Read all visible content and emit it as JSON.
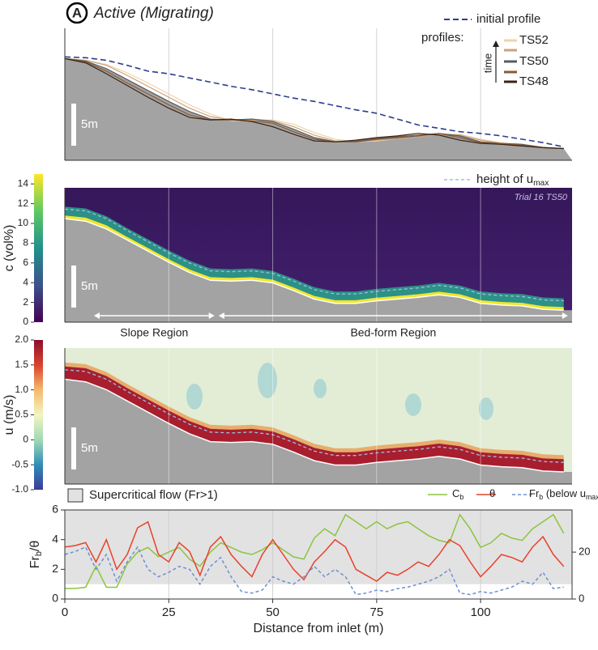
{
  "chart_data": [
    {
      "type": "line",
      "panel_letter": "A",
      "title": "Active (Migrating)",
      "legend_heading": "profiles:",
      "time_label": "time",
      "scale_label": "5m",
      "xlim": [
        0,
        122
      ],
      "ylim": [
        0,
        15.7
      ],
      "x": [
        0,
        5,
        10,
        15,
        20,
        25,
        30,
        35,
        40,
        45,
        50,
        55,
        60,
        65,
        70,
        75,
        80,
        85,
        90,
        95,
        100,
        105,
        110,
        115,
        120
      ],
      "series": [
        {
          "name": "initial profile",
          "color": "#2b3f8c",
          "dash": true,
          "values": [
            12.3,
            12.2,
            11.9,
            11.3,
            10.6,
            10.3,
            9.8,
            9.3,
            8.8,
            8.4,
            7.9,
            7.4,
            7.0,
            6.5,
            6.0,
            5.6,
            4.9,
            4.2,
            3.8,
            3.4,
            3.2,
            2.9,
            2.5,
            2.1,
            1.6
          ]
        },
        {
          "name": "TS52",
          "color": "#f1d3a8",
          "values": [
            12.1,
            11.9,
            11.4,
            10.4,
            9.2,
            7.9,
            6.6,
            5.5,
            4.7,
            4.8,
            4.8,
            4.3,
            3.3,
            2.5,
            2.2,
            2.3,
            2.6,
            2.8,
            3.1,
            3.1,
            2.5,
            2.1,
            1.9,
            1.6,
            1.4
          ]
        },
        {
          "name": null,
          "color": "#c9a27a",
          "values": [
            12.1,
            11.9,
            11.3,
            10.1,
            8.8,
            7.5,
            6.2,
            5.2,
            4.8,
            4.9,
            4.7,
            4.0,
            3.0,
            2.3,
            2.2,
            2.4,
            2.6,
            2.8,
            3.1,
            3.0,
            2.4,
            2.0,
            1.9,
            1.5,
            1.4
          ]
        },
        {
          "name": "TS50",
          "color": "#555a60",
          "values": [
            12.1,
            11.8,
            10.9,
            9.6,
            8.3,
            7.0,
            5.8,
            4.9,
            4.8,
            4.9,
            4.6,
            3.7,
            2.7,
            2.2,
            2.2,
            2.5,
            2.7,
            2.9,
            3.2,
            2.9,
            2.2,
            2.0,
            1.9,
            1.5,
            1.4
          ]
        },
        {
          "name": null,
          "color": "#8a5a36",
          "values": [
            12.1,
            11.7,
            10.6,
            9.2,
            7.9,
            6.6,
            5.4,
            4.8,
            4.8,
            4.7,
            4.4,
            3.4,
            2.5,
            2.2,
            2.3,
            2.6,
            2.8,
            3.0,
            3.2,
            2.7,
            2.1,
            2.0,
            1.8,
            1.5,
            1.4
          ]
        },
        {
          "name": "TS48",
          "color": "#3b2314",
          "values": [
            12.1,
            11.6,
            10.3,
            8.9,
            7.5,
            6.2,
            5.1,
            4.8,
            4.9,
            4.6,
            4.0,
            3.1,
            2.3,
            2.2,
            2.4,
            2.7,
            2.9,
            3.2,
            3.0,
            2.4,
            2.0,
            1.9,
            1.7,
            1.5,
            1.4
          ]
        }
      ]
    },
    {
      "type": "heatmap",
      "colorbar_label": "c (vol%)",
      "clim": [
        0,
        15
      ],
      "cticks": [
        0,
        2,
        4,
        6,
        8,
        10,
        12,
        14
      ],
      "annotation": "Trial 16 TS50",
      "scale_label": "5m",
      "xlim": [
        0,
        122
      ],
      "umax": {
        "name_parts": [
          "height of u",
          "max"
        ],
        "color": "#9dbde6",
        "values": [
          13.2,
          13.0,
          12.1,
          10.7,
          9.4,
          8.1,
          6.9,
          6.0,
          5.9,
          6.0,
          5.7,
          4.8,
          3.8,
          3.3,
          3.3,
          3.6,
          3.8,
          4.0,
          4.3,
          4.0,
          3.3,
          3.1,
          3.0,
          2.6,
          2.5
        ]
      },
      "regions": [
        {
          "label": "Slope Region",
          "x": [
            7,
            36
          ]
        },
        {
          "label": "Bed-form Region",
          "x": [
            37,
            121
          ]
        }
      ]
    },
    {
      "type": "heatmap",
      "colorbar_label": "u (m/s)",
      "clim": [
        -1,
        2
      ],
      "scale_label": "5m",
      "xlim": [
        0,
        122
      ],
      "cticks": [
        {
          "value": 2,
          "label": "2.0"
        },
        1.5,
        {
          "value": 1,
          "label": "1.0"
        },
        0.5,
        0,
        -0.5,
        {
          "value": -1,
          "label": "-1.0"
        }
      ]
    },
    {
      "type": "line",
      "xlim": [
        0,
        122
      ],
      "xticks": [
        0,
        25,
        50,
        75,
        100
      ],
      "ylim": [
        0,
        6
      ],
      "yticks": [
        0,
        2,
        4,
        6
      ],
      "y2lim": [
        0,
        38
      ],
      "y2ticks": [
        0,
        20
      ],
      "xlabel": "Distance from inlet (m)",
      "ylabel_parts": [
        "Fr",
        "b",
        "/θ"
      ],
      "shade": {
        "label": "Supercritical flow (Fr>1)",
        "from": 1,
        "color": "#e2e2e2"
      },
      "x": [
        0,
        2.5,
        5,
        7.5,
        10,
        12.5,
        15,
        17.5,
        20,
        22.5,
        25,
        27.5,
        30,
        32.5,
        35,
        37.5,
        40,
        42.5,
        45,
        47.5,
        50,
        52.5,
        55,
        57.5,
        60,
        62.5,
        65,
        67.5,
        70,
        72.5,
        75,
        77.5,
        80,
        82.5,
        85,
        87.5,
        90,
        92.5,
        95,
        97.5,
        100,
        102.5,
        105,
        107.5,
        110,
        112.5,
        115,
        117.5,
        120
      ],
      "series": [
        {
          "name_parts": [
            "C",
            "b"
          ],
          "color": "#8cc43f",
          "axis": "y2",
          "values": [
            4.5,
            4.5,
            5,
            14,
            5,
            5,
            15,
            20,
            22,
            18,
            20,
            22,
            17,
            14,
            20,
            24,
            22,
            20,
            19,
            21,
            24,
            21,
            18,
            17,
            26,
            30,
            27,
            36,
            33,
            30,
            33,
            30,
            32,
            33,
            30,
            27,
            25,
            24,
            36,
            30,
            22,
            24,
            28,
            26,
            25,
            30,
            33,
            36,
            28
          ]
        },
        {
          "name_parts": [
            "θ"
          ],
          "color": "#e8412c",
          "values": [
            3.5,
            3.6,
            3.8,
            2.5,
            4.0,
            2.0,
            3.0,
            4.8,
            5.2,
            3.0,
            2.5,
            3.8,
            3.2,
            1.6,
            3.5,
            4.2,
            3.0,
            2.2,
            1.5,
            3.0,
            4.0,
            3.0,
            2.0,
            1.3,
            2.5,
            3.2,
            4.0,
            3.5,
            2.0,
            1.6,
            1.2,
            1.8,
            1.6,
            2.0,
            2.5,
            2.2,
            3.0,
            4.0,
            3.6,
            2.5,
            1.5,
            2.2,
            3.0,
            2.8,
            2.5,
            3.5,
            4.2,
            3.0,
            2.2
          ]
        },
        {
          "name_parts": [
            "Fr",
            "b",
            " (below u",
            "max",
            ")"
          ],
          "color": "#6d8fd2",
          "dash": true,
          "values": [
            3.0,
            3.2,
            3.5,
            2.0,
            3.0,
            1.2,
            2.5,
            3.5,
            2.0,
            1.5,
            1.8,
            2.2,
            2.0,
            1.0,
            2.2,
            2.8,
            1.5,
            0.5,
            0.4,
            0.6,
            1.5,
            1.2,
            1.0,
            1.5,
            2.2,
            1.5,
            2.0,
            1.5,
            0.3,
            0.4,
            0.6,
            0.5,
            0.7,
            0.8,
            1.0,
            1.2,
            1.5,
            2.0,
            0.4,
            0.3,
            0.5,
            0.4,
            0.6,
            0.8,
            1.2,
            1.0,
            1.8,
            0.7,
            0.8
          ]
        }
      ]
    }
  ]
}
